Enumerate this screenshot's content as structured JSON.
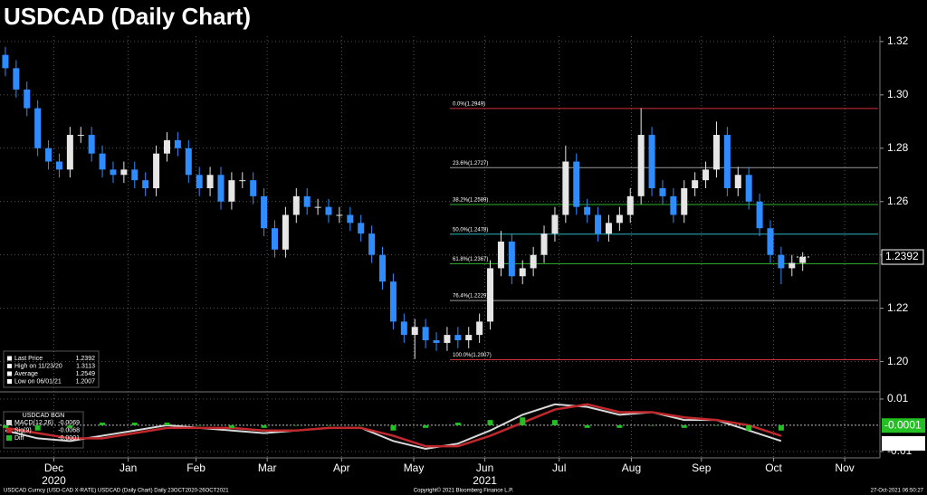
{
  "chart_data": [
    {
      "type": "candlestick",
      "title": "USDCAD (Daily Chart)",
      "open": [
        1.315,
        1.31,
        1.302,
        1.295,
        1.28,
        1.275,
        1.272,
        1.285,
        1.285,
        1.278,
        1.272,
        1.27,
        1.272,
        1.268,
        1.265,
        1.278,
        1.283,
        1.28,
        1.27,
        1.265,
        1.27,
        1.26,
        1.268,
        1.268,
        1.262,
        1.25,
        1.242,
        1.255,
        1.262,
        1.258,
        1.258,
        1.255,
        1.255,
        1.252,
        1.248,
        1.24,
        1.23,
        1.215,
        1.21,
        1.213,
        1.208,
        1.207,
        1.21,
        1.208,
        1.21,
        1.215,
        1.235,
        1.245,
        1.232,
        1.235,
        1.24,
        1.248,
        1.255,
        1.275,
        1.258,
        1.255,
        1.248,
        1.252,
        1.255,
        1.262,
        1.285,
        1.265,
        1.262,
        1.255,
        1.265,
        1.268,
        1.272,
        1.285,
        1.265,
        1.27,
        1.26,
        1.25,
        1.24,
        1.235,
        1.237
      ],
      "high": [
        1.318,
        1.313,
        1.305,
        1.298,
        1.283,
        1.278,
        1.288,
        1.288,
        1.288,
        1.281,
        1.275,
        1.275,
        1.275,
        1.271,
        1.281,
        1.286,
        1.286,
        1.283,
        1.273,
        1.273,
        1.273,
        1.271,
        1.271,
        1.271,
        1.265,
        1.253,
        1.258,
        1.265,
        1.265,
        1.261,
        1.261,
        1.258,
        1.258,
        1.255,
        1.251,
        1.243,
        1.233,
        1.218,
        1.216,
        1.216,
        1.211,
        1.213,
        1.213,
        1.213,
        1.218,
        1.238,
        1.249,
        1.248,
        1.238,
        1.243,
        1.251,
        1.258,
        1.281,
        1.278,
        1.261,
        1.258,
        1.255,
        1.258,
        1.265,
        1.295,
        1.288,
        1.268,
        1.265,
        1.268,
        1.271,
        1.275,
        1.29,
        1.288,
        1.273,
        1.273,
        1.263,
        1.253,
        1.243,
        1.24,
        1.241
      ],
      "low": [
        1.307,
        1.299,
        1.292,
        1.277,
        1.272,
        1.269,
        1.269,
        1.282,
        1.275,
        1.269,
        1.267,
        1.267,
        1.265,
        1.262,
        1.262,
        1.275,
        1.277,
        1.267,
        1.262,
        1.262,
        1.257,
        1.257,
        1.265,
        1.259,
        1.247,
        1.239,
        1.239,
        1.252,
        1.255,
        1.255,
        1.252,
        1.252,
        1.249,
        1.245,
        1.237,
        1.227,
        1.212,
        1.207,
        1.201,
        1.205,
        1.204,
        1.204,
        1.205,
        1.205,
        1.207,
        1.212,
        1.232,
        1.229,
        1.229,
        1.232,
        1.237,
        1.245,
        1.252,
        1.255,
        1.252,
        1.245,
        1.245,
        1.249,
        1.252,
        1.259,
        1.262,
        1.259,
        1.252,
        1.252,
        1.262,
        1.265,
        1.269,
        1.262,
        1.262,
        1.257,
        1.247,
        1.237,
        1.229,
        1.232,
        1.234
      ],
      "close": [
        1.31,
        1.302,
        1.295,
        1.28,
        1.275,
        1.272,
        1.285,
        1.285,
        1.278,
        1.272,
        1.27,
        1.272,
        1.268,
        1.265,
        1.278,
        1.283,
        1.28,
        1.27,
        1.265,
        1.27,
        1.26,
        1.268,
        1.268,
        1.262,
        1.25,
        1.242,
        1.255,
        1.262,
        1.258,
        1.258,
        1.255,
        1.255,
        1.252,
        1.248,
        1.24,
        1.23,
        1.215,
        1.21,
        1.213,
        1.208,
        1.207,
        1.21,
        1.208,
        1.21,
        1.215,
        1.235,
        1.245,
        1.232,
        1.235,
        1.24,
        1.248,
        1.255,
        1.275,
        1.258,
        1.255,
        1.248,
        1.252,
        1.255,
        1.262,
        1.285,
        1.265,
        1.262,
        1.255,
        1.265,
        1.268,
        1.272,
        1.285,
        1.265,
        1.27,
        1.26,
        1.25,
        1.24,
        1.235,
        1.237,
        1.2392
      ],
      "up_color": "#e6e6e6",
      "down_color": "#2f8cff",
      "xlim": [
        -0.5,
        81
      ],
      "xticks": [
        {
          "value": 4.5,
          "label": "Dec"
        },
        {
          "value": 11.4,
          "label": "Jan"
        },
        {
          "value": 17.7,
          "label": "Feb"
        },
        {
          "value": 24.3,
          "label": "Mar"
        },
        {
          "value": 31.2,
          "label": "Apr"
        },
        {
          "value": 37.9,
          "label": "May"
        },
        {
          "value": 44.5,
          "label": "Jun"
        },
        {
          "value": 51.4,
          "label": "Jul"
        },
        {
          "value": 58.1,
          "label": "Aug"
        },
        {
          "value": 64.6,
          "label": "Sep"
        },
        {
          "value": 71.3,
          "label": "Oct"
        },
        {
          "value": 77.9,
          "label": "Nov"
        }
      ],
      "year_labels": [
        {
          "value": 4.5,
          "label": "2020"
        },
        {
          "value": 44.5,
          "label": "2021"
        }
      ],
      "ylim": [
        1.189,
        1.322
      ],
      "yticks": [
        {
          "value": 1.2,
          "label": "1.20"
        },
        {
          "value": 1.22,
          "label": "1.22"
        },
        {
          "value": 1.24,
          "label": "1.24"
        },
        {
          "value": 1.26,
          "label": "1.26"
        },
        {
          "value": 1.28,
          "label": "1.28"
        },
        {
          "value": 1.3,
          "label": "1.30"
        },
        {
          "value": 1.32,
          "label": "1.32"
        }
      ],
      "grid": true,
      "levels": [
        {
          "value": 1.2949,
          "label": "0.0%(1.2949)",
          "color": "#d0303a"
        },
        {
          "value": 1.2727,
          "label": "23.6%(1.2727)",
          "color": "#9a9a9a"
        },
        {
          "value": 1.2589,
          "label": "38.2%(1.2589)",
          "color": "#2fb52f"
        },
        {
          "value": 1.2478,
          "label": "50.0%(1.2478)",
          "color": "#2bb5c0"
        },
        {
          "value": 1.2367,
          "label": "61.8%(1.2367)",
          "color": "#2fb52f"
        },
        {
          "value": 1.2229,
          "label": "76.4%(1.2229)",
          "color": "#9a9a9a"
        },
        {
          "value": 1.2007,
          "label": "100.0%(1.2007)",
          "color": "#d0303a"
        }
      ],
      "last_price": 1.2392,
      "stats": [
        {
          "label": "Last Price",
          "value": 1.2392
        },
        {
          "label": "High on 11/23/20",
          "value": 1.3113
        },
        {
          "label": "Average",
          "value": 1.2549
        },
        {
          "label": "Low on 06/01/21",
          "value": 1.2007
        }
      ]
    },
    {
      "type": "macd",
      "title": "USDCAD BGN",
      "x": [
        0,
        3,
        6,
        9,
        12,
        15,
        18,
        21,
        24,
        27,
        30,
        33,
        36,
        39,
        42,
        45,
        48,
        51,
        54,
        57,
        60,
        63,
        66,
        69,
        72
      ],
      "series": [
        {
          "name": "MACD(12,26)",
          "color": "#d8d8d8",
          "last": -0.0069,
          "values": [
            -0.002,
            -0.005,
            -0.006,
            -0.004,
            -0.002,
            0.0,
            -0.001,
            -0.002,
            -0.003,
            -0.002,
            -0.001,
            -0.001,
            -0.006,
            -0.009,
            -0.007,
            -0.002,
            0.004,
            0.008,
            0.007,
            0.004,
            0.005,
            0.002,
            0.002,
            -0.002,
            -0.006
          ]
        },
        {
          "name": "Sig(9)",
          "color": "#c0282c",
          "last": -0.0068,
          "values": [
            -0.001,
            -0.003,
            -0.005,
            -0.005,
            -0.003,
            -0.001,
            -0.001,
            -0.001,
            -0.002,
            -0.002,
            -0.001,
            -0.001,
            -0.004,
            -0.008,
            -0.008,
            -0.004,
            0.001,
            0.006,
            0.008,
            0.005,
            0.005,
            0.003,
            0.002,
            0.0,
            -0.004
          ]
        },
        {
          "name": "Diff",
          "color": "#22c022",
          "last": -0.0001,
          "values": [
            -0.001,
            -0.002,
            -0.001,
            0.001,
            0.001,
            0.001,
            0.0,
            -0.001,
            -0.001,
            0.0,
            0.0,
            0.0,
            -0.002,
            -0.001,
            0.001,
            0.002,
            0.003,
            0.002,
            -0.001,
            -0.001,
            0.0,
            -0.001,
            0.0,
            -0.002,
            -0.002
          ]
        }
      ],
      "ylim": [
        -0.0121,
        0.0124
      ],
      "yticks": [
        -0.01,
        0.01
      ]
    }
  ],
  "footer": {
    "left": "USDCAD Curncy (USD-CAD X-RATE) USDCAD (Daily Chart)  Daily 23OCT2020-26OCT2021",
    "center": "Copyright© 2021 Bloomberg Finance L.P.",
    "right": "27-Oct-2021 06:50:27"
  }
}
